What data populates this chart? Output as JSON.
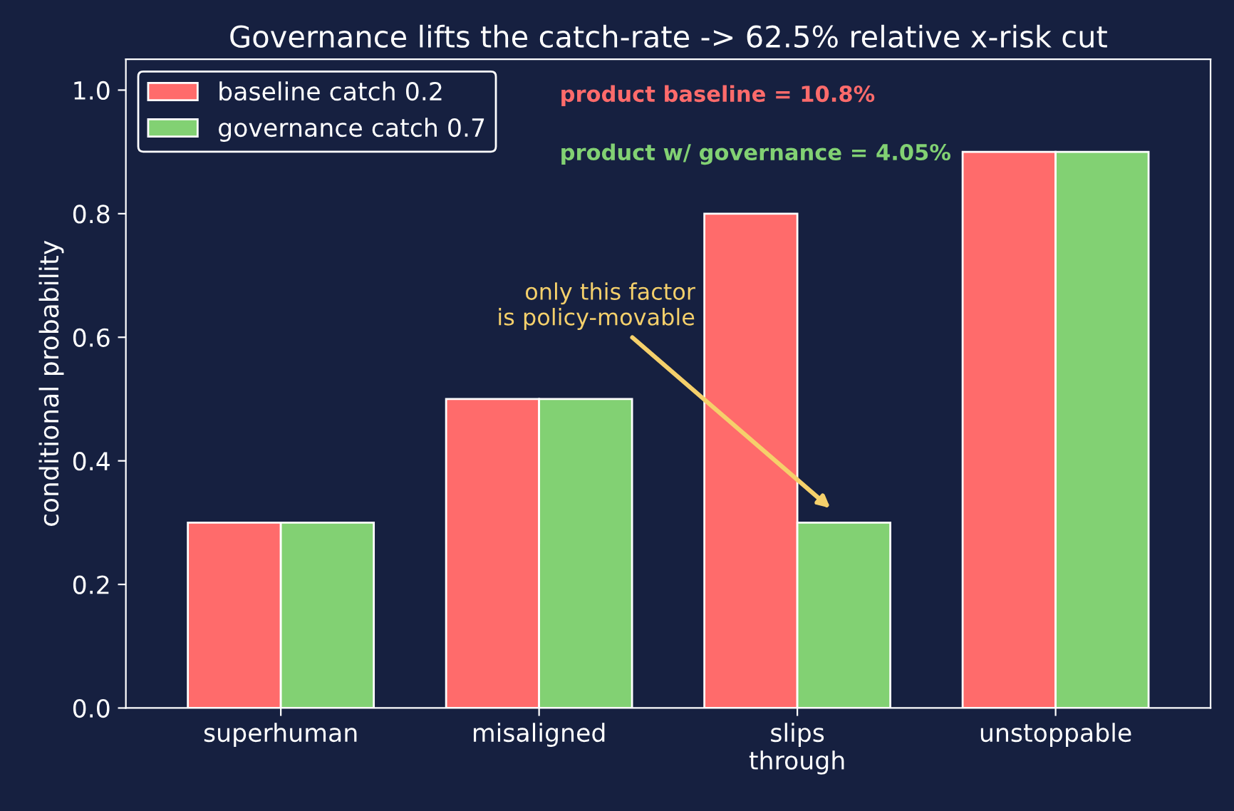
{
  "chart_data": {
    "type": "bar",
    "title": "Governance lifts the catch-rate -> 62.5% relative x-risk cut",
    "ylabel": "conditional probability",
    "categories": [
      "superhuman",
      "misaligned",
      "slips\nthrough",
      "unstoppable"
    ],
    "series": [
      {
        "name": "baseline catch 0.2",
        "color": "#ff6b6b",
        "values": [
          0.3,
          0.5,
          0.8,
          0.9
        ]
      },
      {
        "name": "governance catch 0.7",
        "color": "#82d173",
        "values": [
          0.3,
          0.5,
          0.3,
          0.9
        ]
      }
    ],
    "ylim": [
      0,
      1.05
    ],
    "yticks": [
      {
        "value": 0,
        "label": "0.0"
      },
      {
        "value": 0.2,
        "label": "0.2"
      },
      {
        "value": 0.4,
        "label": "0.4"
      },
      {
        "value": 0.6,
        "label": "0.6"
      },
      {
        "value": 0.8,
        "label": "0.8"
      },
      {
        "value": 1.0,
        "label": "1.0"
      }
    ],
    "annotations": [
      "product baseline = 10.8%",
      "product w/ governance = 4.05%",
      "only this factor\nis policy-movable"
    ],
    "legend": "top left",
    "grid": false
  }
}
